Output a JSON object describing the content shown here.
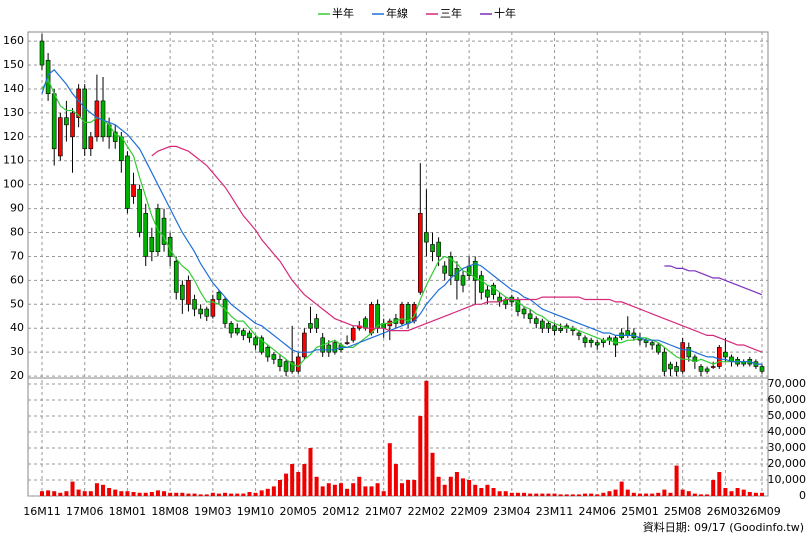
{
  "chart_data": {
    "type": "candlestick",
    "note": "資料日期: 09/17 (Goodinfo.tw)",
    "categories": [
      "16M11",
      null,
      null,
      null,
      null,
      null,
      null,
      "17M06",
      null,
      null,
      null,
      null,
      null,
      null,
      "18M01",
      null,
      null,
      null,
      null,
      null,
      null,
      "18M08",
      null,
      null,
      null,
      null,
      null,
      null,
      "19M03",
      null,
      null,
      null,
      null,
      null,
      null,
      "19M10",
      null,
      null,
      null,
      null,
      null,
      null,
      "20M05",
      null,
      null,
      null,
      null,
      null,
      null,
      "20M12",
      null,
      null,
      null,
      null,
      null,
      null,
      "21M07",
      null,
      null,
      null,
      null,
      null,
      null,
      "22M02",
      null,
      null,
      null,
      null,
      null,
      null,
      "22M09",
      null,
      null,
      null,
      null,
      null,
      null,
      "23M04",
      null,
      null,
      null,
      null,
      null,
      null,
      "23M11",
      null,
      null,
      null,
      null,
      null,
      null,
      "24M06",
      null,
      null,
      null,
      null,
      null,
      null,
      "25M01",
      null,
      null,
      null,
      null,
      null,
      null,
      "25M08",
      null,
      null,
      null,
      null,
      null,
      null,
      "26M03",
      null,
      null,
      null,
      null,
      null,
      "26M09"
    ],
    "ohlc": [
      [
        160,
        163,
        148,
        150
      ],
      [
        152,
        155,
        135,
        138
      ],
      [
        138,
        140,
        108,
        115
      ],
      [
        112,
        130,
        110,
        128
      ],
      [
        128,
        135,
        118,
        125
      ],
      [
        120,
        132,
        105,
        130
      ],
      [
        128,
        142,
        124,
        140
      ],
      [
        140,
        142,
        112,
        115
      ],
      [
        115,
        122,
        112,
        120
      ],
      [
        120,
        146,
        118,
        135
      ],
      [
        135,
        145,
        118,
        120
      ],
      [
        125,
        128,
        115,
        120
      ],
      [
        122,
        125,
        115,
        118
      ],
      [
        120,
        122,
        105,
        110
      ],
      [
        112,
        114,
        88,
        90
      ],
      [
        95,
        105,
        92,
        100
      ],
      [
        98,
        100,
        78,
        80
      ],
      [
        88,
        92,
        66,
        70
      ],
      [
        78,
        82,
        68,
        72
      ],
      [
        90,
        92,
        70,
        72
      ],
      [
        86,
        90,
        72,
        75
      ],
      [
        78,
        80,
        66,
        70
      ],
      [
        68,
        70,
        52,
        55
      ],
      [
        58,
        60,
        46,
        52
      ],
      [
        50,
        62,
        47,
        60
      ],
      [
        52,
        54,
        45,
        48
      ],
      [
        48,
        50,
        44,
        46
      ],
      [
        48,
        49,
        43,
        45
      ],
      [
        45,
        54,
        44,
        52
      ],
      [
        55,
        56,
        50,
        52
      ],
      [
        52,
        53,
        40,
        42
      ],
      [
        42,
        43,
        36,
        38
      ],
      [
        40,
        42,
        37,
        38
      ],
      [
        39,
        40,
        35,
        37
      ],
      [
        38,
        39,
        34,
        36
      ],
      [
        36,
        37,
        31,
        33
      ],
      [
        36,
        37,
        29,
        30
      ],
      [
        32,
        33,
        26,
        28
      ],
      [
        29,
        30,
        25,
        27
      ],
      [
        27,
        29,
        22,
        24
      ],
      [
        26,
        27,
        20,
        22
      ],
      [
        26,
        41,
        21,
        22
      ],
      [
        22,
        30,
        21,
        28
      ],
      [
        28,
        40,
        27,
        38
      ],
      [
        42,
        49,
        38,
        40
      ],
      [
        44,
        46,
        38,
        40
      ],
      [
        36,
        38,
        28,
        30
      ],
      [
        33,
        35,
        28,
        30
      ],
      [
        34,
        35,
        29,
        30
      ],
      [
        33,
        34,
        30,
        31
      ],
      [
        34,
        37,
        33,
        34
      ],
      [
        35,
        41,
        34,
        40
      ],
      [
        40,
        43,
        39,
        41
      ],
      [
        44,
        45,
        39,
        40
      ],
      [
        38,
        51,
        37,
        50
      ],
      [
        50,
        52,
        38,
        40
      ],
      [
        42,
        44,
        36,
        40
      ],
      [
        41,
        44,
        35,
        43
      ],
      [
        44,
        46,
        40,
        42
      ],
      [
        42,
        51,
        41,
        50
      ],
      [
        50,
        51,
        40,
        42
      ],
      [
        43,
        51,
        42,
        50
      ],
      [
        55,
        109,
        54,
        88
      ],
      [
        80,
        98,
        70,
        76
      ],
      [
        75,
        80,
        68,
        72
      ],
      [
        76,
        78,
        66,
        70
      ],
      [
        66,
        68,
        60,
        63
      ],
      [
        70,
        72,
        58,
        62
      ],
      [
        65,
        68,
        52,
        60
      ],
      [
        62,
        64,
        55,
        58
      ],
      [
        66,
        70,
        60,
        62
      ],
      [
        68,
        70,
        50,
        60
      ],
      [
        62,
        64,
        52,
        55
      ],
      [
        56,
        58,
        50,
        53
      ],
      [
        58,
        59,
        52,
        54
      ],
      [
        53,
        55,
        49,
        51
      ],
      [
        52,
        53,
        48,
        50
      ],
      [
        53,
        54,
        49,
        51
      ],
      [
        52,
        53,
        45,
        47
      ],
      [
        48,
        49,
        44,
        46
      ],
      [
        46,
        48,
        42,
        44
      ],
      [
        44,
        45,
        40,
        42
      ],
      [
        43,
        44,
        38,
        40
      ],
      [
        42,
        43,
        38,
        40
      ],
      [
        41,
        42,
        37,
        39
      ],
      [
        40,
        42,
        38,
        39
      ],
      [
        41,
        42,
        38,
        40
      ],
      [
        40,
        41,
        37,
        39
      ],
      [
        38,
        39,
        35,
        37
      ],
      [
        36,
        37,
        32,
        34
      ],
      [
        35,
        36,
        32,
        34
      ],
      [
        34,
        35,
        31,
        33
      ],
      [
        35,
        36,
        32,
        34
      ],
      [
        36,
        37,
        33,
        35
      ],
      [
        36,
        37,
        28,
        33
      ],
      [
        38,
        40,
        35,
        36
      ],
      [
        39,
        45,
        36,
        37
      ],
      [
        38,
        40,
        35,
        36
      ],
      [
        36,
        38,
        33,
        35
      ],
      [
        35,
        36,
        32,
        34
      ],
      [
        34,
        35,
        31,
        33
      ],
      [
        33,
        34,
        29,
        30
      ],
      [
        30,
        32,
        20,
        22
      ],
      [
        25,
        26,
        20,
        23
      ],
      [
        24,
        26,
        20,
        22
      ],
      [
        22,
        36,
        21,
        34
      ],
      [
        32,
        34,
        26,
        28
      ],
      [
        28,
        29,
        23,
        26
      ],
      [
        24,
        25,
        20,
        22
      ],
      [
        23,
        24,
        21,
        22
      ],
      [
        24,
        26,
        23,
        24
      ],
      [
        24,
        33,
        23,
        32
      ],
      [
        30,
        36,
        26,
        28
      ],
      [
        28,
        29,
        24,
        26
      ],
      [
        27,
        28,
        24,
        25
      ],
      [
        26,
        27,
        24,
        25
      ],
      [
        27,
        28,
        24,
        25
      ],
      [
        26,
        27,
        23,
        24
      ],
      [
        24,
        25,
        21,
        22
      ]
    ],
    "up_color": "#ff0000",
    "down_color": "#00b000",
    "ylim": [
      19.2,
      163.8
    ],
    "yticks": [
      20,
      30,
      40,
      50,
      60,
      70,
      80,
      90,
      100,
      110,
      120,
      130,
      140,
      150,
      160
    ],
    "grid": true,
    "legend": "top",
    "series": [
      {
        "name": "半年",
        "color": "#33cc33",
        "values": [
          140,
          144,
          138,
          133,
          131,
          131,
          129,
          126,
          126,
          128,
          127,
          125,
          121,
          120,
          116,
          112,
          103,
          95,
          87,
          81,
          78,
          73,
          69,
          66,
          64,
          60,
          55,
          51,
          51,
          50,
          48,
          45,
          43,
          43,
          40,
          37,
          35,
          33,
          31,
          29,
          27,
          25,
          24,
          27,
          29,
          32,
          33,
          34,
          35,
          33,
          32,
          32,
          34,
          36,
          38,
          41,
          42,
          42,
          43,
          44,
          43,
          45,
          52,
          58,
          63,
          68,
          70,
          69,
          67,
          64,
          63,
          61,
          60,
          58,
          57,
          55,
          53,
          52,
          51,
          49,
          48,
          46,
          45,
          43,
          42,
          41,
          40,
          40,
          39,
          38,
          37,
          36,
          35,
          35,
          34,
          34,
          35,
          35,
          36,
          36,
          35,
          34,
          32,
          30,
          28,
          27,
          27,
          26,
          27,
          26,
          25,
          26,
          26,
          26,
          26,
          26,
          26,
          25,
          25
        ]
      },
      {
        "name": "年線",
        "color": "#1e6fd9",
        "values": [
          138,
          146,
          148,
          145,
          142,
          138,
          135,
          132,
          130,
          128,
          127,
          126,
          125,
          123,
          121,
          118,
          115,
          110,
          105,
          100,
          95,
          90,
          85,
          80,
          76,
          72,
          67,
          63,
          59,
          56,
          53,
          50,
          48,
          46,
          44,
          42,
          41,
          39,
          37,
          35,
          33,
          31,
          30,
          30,
          30,
          31,
          31,
          31,
          31,
          32,
          32,
          33,
          34,
          35,
          36,
          37,
          38,
          39,
          40,
          41,
          42,
          43,
          46,
          50,
          53,
          56,
          58,
          61,
          63,
          65,
          66,
          67,
          66,
          64,
          62,
          60,
          58,
          56,
          55,
          53,
          52,
          50,
          48,
          47,
          46,
          45,
          44,
          43,
          42,
          41,
          40,
          39,
          38,
          38,
          37,
          37,
          37,
          37,
          36,
          35,
          35,
          35,
          34,
          33,
          32,
          31,
          31,
          30,
          29,
          28,
          28,
          27,
          27,
          26,
          26,
          26,
          26,
          25,
          25
        ]
      },
      {
        "name": "三年",
        "color": "#d6297a",
        "values": [
          null,
          null,
          null,
          null,
          null,
          null,
          null,
          null,
          null,
          null,
          null,
          null,
          null,
          null,
          null,
          null,
          null,
          null,
          112,
          114,
          115,
          116,
          116,
          115,
          114,
          112,
          110,
          108,
          105,
          102,
          99,
          95,
          91,
          87,
          84,
          81,
          77,
          74,
          71,
          68,
          64,
          60,
          57,
          54,
          52,
          50,
          48,
          46,
          44,
          43,
          42,
          41,
          41,
          40,
          40,
          40,
          40,
          39,
          39,
          39,
          39,
          40,
          41,
          42,
          43,
          44,
          45,
          46,
          47,
          48,
          49,
          50,
          50,
          51,
          51,
          51,
          52,
          52,
          52,
          52,
          52,
          52,
          53,
          53,
          53,
          53,
          53,
          53,
          53,
          52,
          52,
          52,
          52,
          52,
          51,
          51,
          50,
          49,
          48,
          47,
          46,
          45,
          44,
          43,
          42,
          41,
          40,
          39,
          38,
          37,
          37,
          36,
          35,
          34,
          33,
          33,
          32,
          31,
          30
        ]
      },
      {
        "name": "十年",
        "color": "#7b2fbf",
        "values": [
          null,
          null,
          null,
          null,
          null,
          null,
          null,
          null,
          null,
          null,
          null,
          null,
          null,
          null,
          null,
          null,
          null,
          null,
          null,
          null,
          null,
          null,
          null,
          null,
          null,
          null,
          null,
          null,
          null,
          null,
          null,
          null,
          null,
          null,
          null,
          null,
          null,
          null,
          null,
          null,
          null,
          null,
          null,
          null,
          null,
          null,
          null,
          null,
          null,
          null,
          null,
          null,
          null,
          null,
          null,
          null,
          null,
          null,
          null,
          null,
          null,
          null,
          null,
          null,
          null,
          null,
          null,
          null,
          null,
          null,
          null,
          null,
          null,
          null,
          null,
          null,
          null,
          null,
          null,
          null,
          null,
          null,
          null,
          null,
          null,
          null,
          null,
          null,
          null,
          null,
          null,
          null,
          null,
          null,
          null,
          null,
          null,
          null,
          null,
          null,
          null,
          null,
          66,
          66,
          65,
          65,
          64,
          64,
          63,
          62,
          61,
          61,
          60,
          59,
          58,
          57,
          56,
          55,
          54
        ]
      }
    ],
    "volume": {
      "color": "#ee0000",
      "ylim": [
        0,
        73750
      ],
      "yticks": [
        0,
        {
          "value": 10000,
          "label": "10,000"
        },
        {
          "value": 20000,
          "label": "20,000"
        },
        {
          "value": 30000,
          "label": "30,000"
        },
        {
          "value": 40000,
          "label": "40,000"
        },
        {
          "value": 50000,
          "label": "50,000"
        },
        {
          "value": 60000,
          "label": "60,000"
        },
        {
          "value": 70000,
          "label": "70,000"
        }
      ],
      "values": [
        3000,
        3500,
        3000,
        2000,
        3000,
        9000,
        4000,
        3000,
        3000,
        8000,
        7000,
        5000,
        4000,
        3000,
        3000,
        2500,
        2000,
        2000,
        2500,
        3500,
        3000,
        2000,
        2000,
        2000,
        1500,
        1500,
        1000,
        1000,
        2000,
        1500,
        2000,
        1500,
        1500,
        1500,
        2500,
        2000,
        3500,
        4500,
        6000,
        10000,
        14000,
        20000,
        15000,
        20000,
        30000,
        12000,
        6000,
        8000,
        7000,
        8000,
        4500,
        8000,
        12000,
        6000,
        6000,
        8000,
        3000,
        33000,
        20000,
        8000,
        10000,
        10000,
        50000,
        72000,
        27000,
        12000,
        7000,
        12000,
        15000,
        11000,
        10000,
        7000,
        5000,
        7000,
        5000,
        3000,
        3000,
        2000,
        2000,
        2000,
        1500,
        1500,
        1500,
        1500,
        1500,
        1000,
        1000,
        1000,
        1000,
        1500,
        1500,
        1000,
        2000,
        3000,
        4000,
        9000,
        4000,
        2000,
        1500,
        1500,
        1500,
        2000,
        4000,
        2000,
        19000,
        4000,
        3000,
        1500,
        1000,
        1000,
        10000,
        15000,
        5000,
        3000,
        5000,
        4000,
        2500,
        2000,
        2000
      ]
    }
  }
}
